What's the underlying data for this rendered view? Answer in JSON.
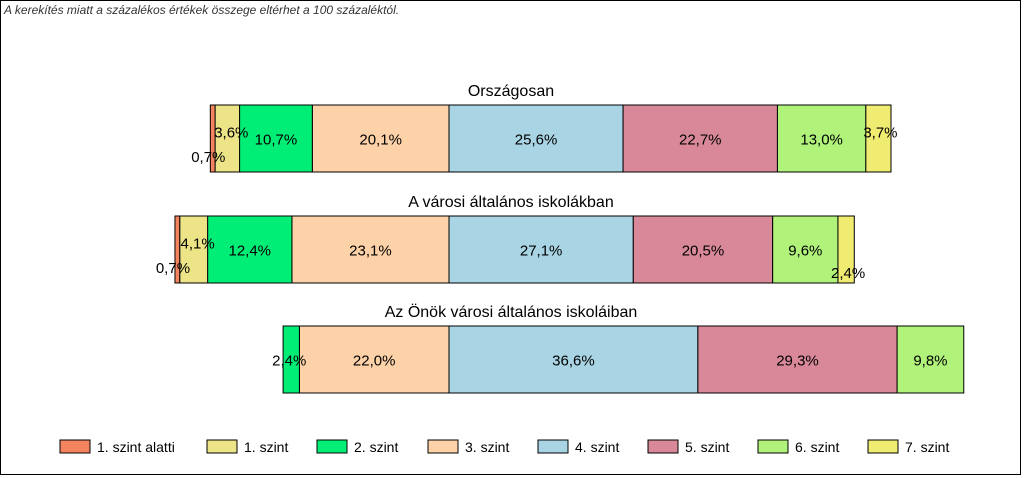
{
  "note": "A kerekítés miatt a  százalékos értékek összege eltérhet a 100 százaléktól.",
  "chart_data": {
    "type": "bar",
    "orientation": "horizontal",
    "stacked": true,
    "diverging": true,
    "categories": [
      "Országosan",
      "A városi általános iskolákban",
      "Az Önök városi általános iskoláiban"
    ],
    "series": [
      {
        "name": "1. szint alatti",
        "color": "#f4845f",
        "values": [
          0.7,
          0.7,
          0
        ],
        "labels": [
          "0,7%",
          "0,7%",
          ""
        ]
      },
      {
        "name": "1. szint",
        "color": "#ece487",
        "values": [
          3.6,
          4.1,
          0
        ],
        "labels": [
          "3,6%",
          "4,1%",
          ""
        ]
      },
      {
        "name": "2. szint",
        "color": "#00ee76",
        "values": [
          10.7,
          12.4,
          2.4
        ],
        "labels": [
          "10,7%",
          "12,4%",
          "2,4%"
        ]
      },
      {
        "name": "3. szint",
        "color": "#fdd2a8",
        "values": [
          20.1,
          23.1,
          22.0
        ],
        "labels": [
          "20,1%",
          "23,1%",
          "22,0%"
        ]
      },
      {
        "name": "4. szint",
        "color": "#a8d4e4",
        "values": [
          25.6,
          27.1,
          36.6
        ],
        "labels": [
          "25,6%",
          "27,1%",
          "36,6%"
        ]
      },
      {
        "name": "5. szint",
        "color": "#d88898",
        "values": [
          22.7,
          20.5,
          29.3
        ],
        "labels": [
          "22,7%",
          "20,5%",
          "29,3%"
        ]
      },
      {
        "name": "6. szint",
        "color": "#b0f27a",
        "values": [
          13.0,
          9.6,
          9.8
        ],
        "labels": [
          "13,0%",
          "9,6%",
          "9,8%"
        ]
      },
      {
        "name": "7. szint",
        "color": "#f0ec72",
        "values": [
          3.7,
          2.4,
          0
        ],
        "labels": [
          "3,7%",
          "2,4%",
          ""
        ]
      }
    ],
    "negative_side_series_count": 4,
    "legend_position": "bottom",
    "grid": false
  }
}
